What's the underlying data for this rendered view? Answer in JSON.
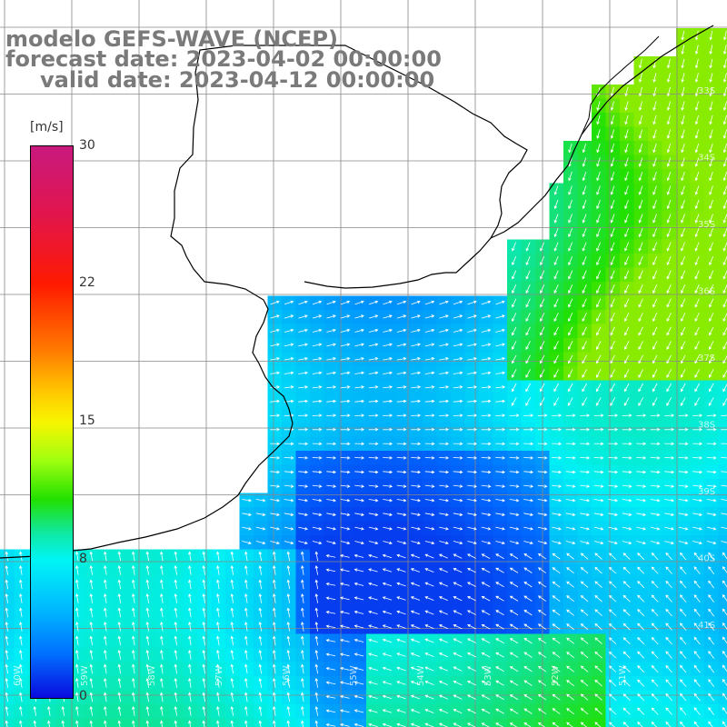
{
  "title": {
    "model": "modelo GEFS-WAVE (NCEP)",
    "forecast": "forecast date: 2023-04-02 00:00:00",
    "valid": "valid date: 2023-04-12 00:00:00"
  },
  "colorbar": {
    "unit": "[m/s]",
    "ticks": [
      "30",
      "22",
      "15",
      "8",
      "0"
    ],
    "colors": [
      "#c8197e",
      "#ff1a00",
      "#ff7a00",
      "#f8f500",
      "#22e000",
      "#00f5f5",
      "#0070ff",
      "#0a0adf"
    ]
  },
  "lat_labels": [
    "33S",
    "34S",
    "35S",
    "36S",
    "37S",
    "38S",
    "39S",
    "40S",
    "41S"
  ],
  "lon_labels": [
    "60W",
    "59W",
    "58W",
    "57W",
    "56W",
    "55W",
    "54W",
    "53W",
    "52W",
    "51W"
  ]
}
